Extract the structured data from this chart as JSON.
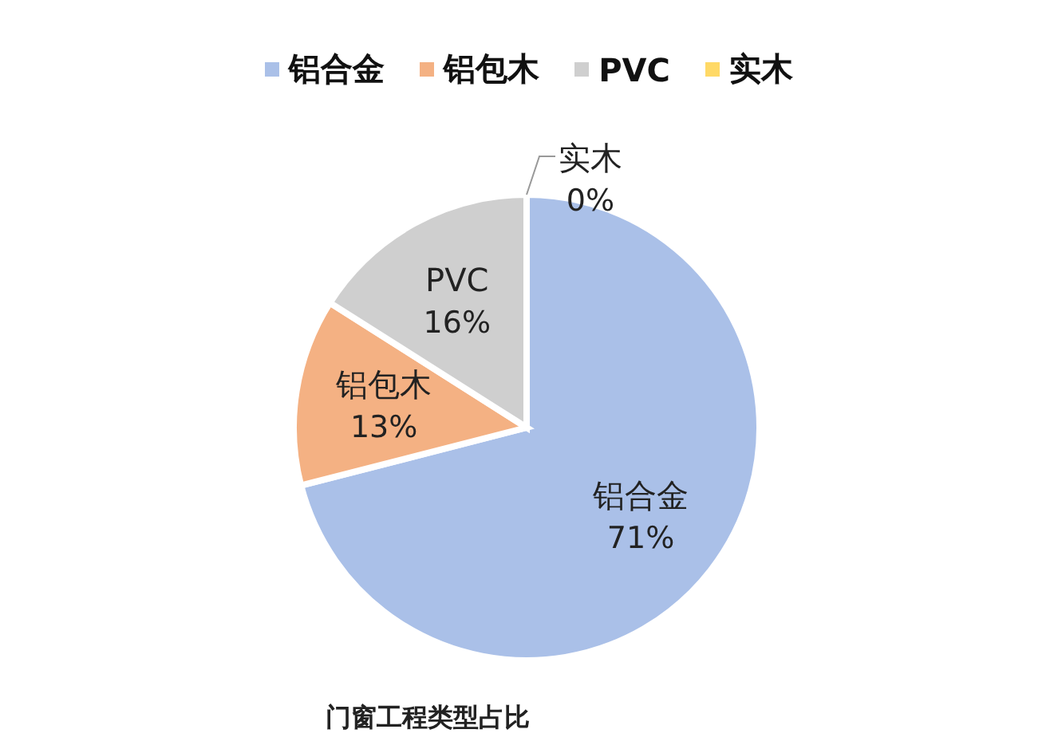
{
  "chart_data": {
    "type": "pie",
    "title": "门窗工程类型占比",
    "categories": [
      "铝合金",
      "铝包木",
      "PVC",
      "实木"
    ],
    "values": [
      71,
      13,
      16,
      0
    ],
    "colors": [
      "#aac0e8",
      "#f4b183",
      "#cfcfcf",
      "#ffd966"
    ],
    "value_labels": [
      "71%",
      "13%",
      "16%",
      "0%"
    ],
    "legend": "top"
  }
}
